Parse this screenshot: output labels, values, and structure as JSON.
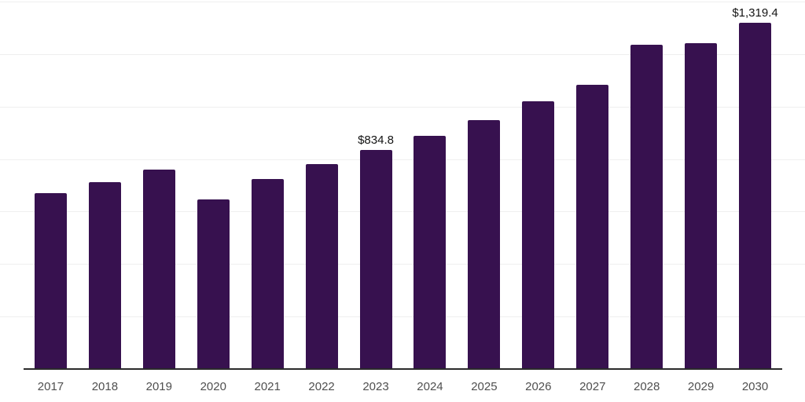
{
  "chart_data": {
    "type": "bar",
    "title": "",
    "xlabel": "",
    "ylabel": "",
    "categories": [
      "2017",
      "2018",
      "2019",
      "2020",
      "2021",
      "2022",
      "2023",
      "2024",
      "2025",
      "2026",
      "2027",
      "2028",
      "2029",
      "2030"
    ],
    "values": [
      670,
      712,
      760,
      647,
      723,
      781,
      834.8,
      889,
      948,
      1019,
      1083,
      1235,
      1240,
      1319.4
    ],
    "data_labels": {
      "2023": "$834.8",
      "2030": "$1,319.4"
    },
    "ylim": [
      0,
      1400
    ],
    "gridline_step": 200,
    "grid": "horizontal",
    "legend": "none",
    "colors": {
      "bar": "#37114F",
      "gridline": "#EFEFEF",
      "axis": "#2B2B2B",
      "tick_label": "#4F4F4F",
      "data_label": "#141414",
      "background": "#FFFFFF"
    }
  }
}
